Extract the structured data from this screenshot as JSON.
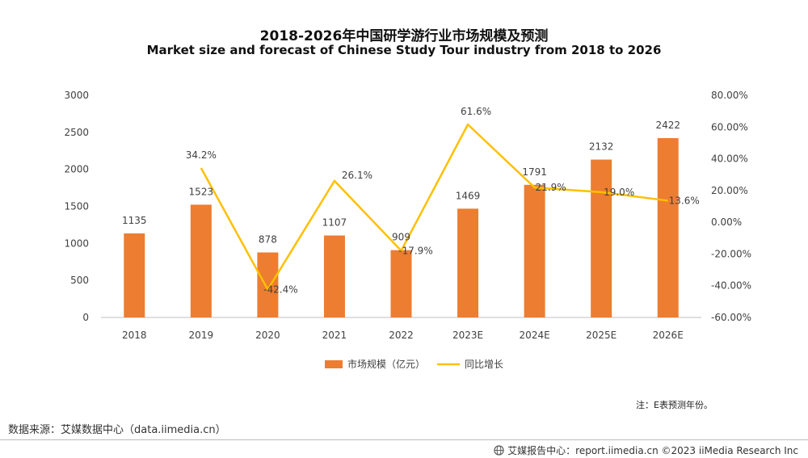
{
  "title_cn": "2018-2026年中国研学游行业市场规模及预测",
  "title_en": "Market size and forecast of Chinese Study Tour industry from 2018 to 2026",
  "note": "注：E表预测年份。",
  "source": "数据来源：艾媒数据中心（data.iimedia.cn）",
  "footer": {
    "text": "艾媒报告中心：report.iimedia.cn  ©2023  iiMedia Research  Inc",
    "icon": "globe-icon"
  },
  "colors": {
    "bar": "#ED7D31",
    "line": "#FFC000",
    "axis": "#BFBFBF",
    "text": "#404040"
  },
  "chart_data": {
    "type": "bar",
    "categories": [
      "2018",
      "2019",
      "2020",
      "2021",
      "2022",
      "2023E",
      "2024E",
      "2025E",
      "2026E"
    ],
    "series": [
      {
        "name": "市场规模（亿元）",
        "type": "bar",
        "axis": "left",
        "values": [
          1135,
          1523,
          878,
          1107,
          909,
          1469,
          1791,
          2132,
          2422
        ],
        "labels": [
          "1135",
          "1523",
          "878",
          "1107",
          "909",
          "1469",
          "1791",
          "2132",
          "2422"
        ]
      },
      {
        "name": "同比增长",
        "type": "line",
        "axis": "right",
        "values": [
          null,
          34.2,
          -42.4,
          26.1,
          -17.9,
          61.6,
          21.9,
          19.0,
          13.6
        ],
        "labels": [
          null,
          "34.2%",
          "-42.4%",
          "26.1%",
          "-17.9%",
          "61.6%",
          "21.9%",
          "19.0%",
          "13.6%"
        ]
      }
    ],
    "y_left": {
      "min": 0,
      "max": 3000,
      "ticks": [
        "0",
        "500",
        "1000",
        "1500",
        "2000",
        "2500",
        "3000"
      ]
    },
    "y_right": {
      "min": -60,
      "max": 80,
      "ticks": [
        "-60.00%",
        "-40.00%",
        "-20.00%",
        "0.00%",
        "20.00%",
        "40.00%",
        "60.00%",
        "80.00%"
      ]
    },
    "grid": false,
    "legend_position": "bottom"
  }
}
